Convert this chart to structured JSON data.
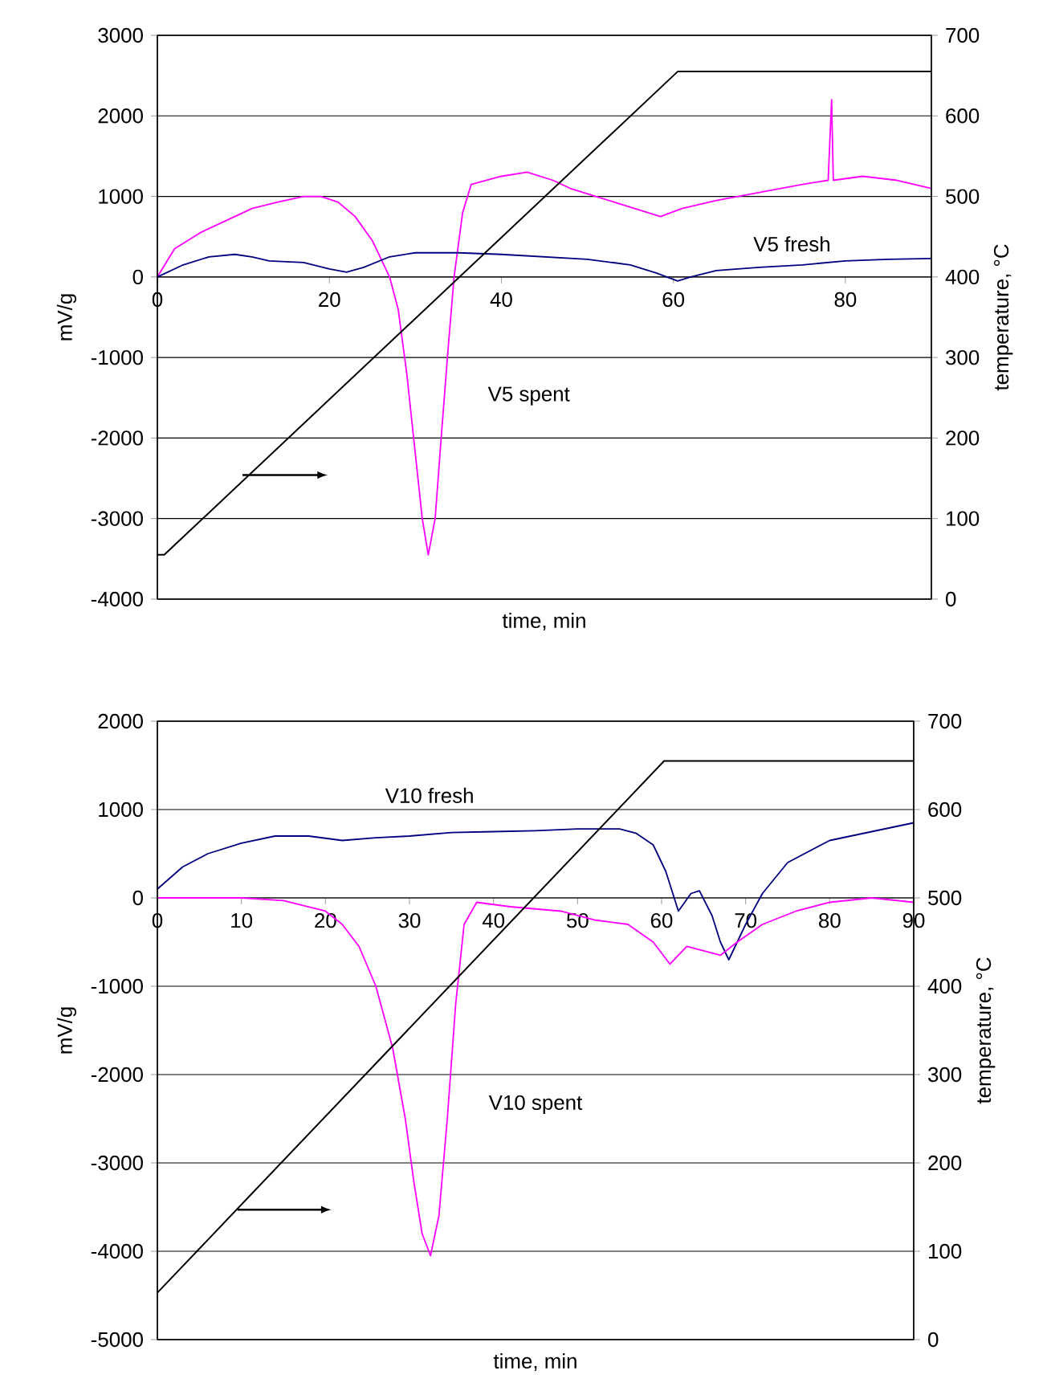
{
  "chart_data": [
    {
      "type": "line",
      "xlabel": "time, min",
      "ylabel": "mV/g",
      "y2label": "temperature, °C",
      "xlim": [
        0,
        90
      ],
      "xticks": [
        0,
        20,
        40,
        60,
        80
      ],
      "ylim": [
        -4000,
        3000
      ],
      "yticks": [
        -4000,
        -3000,
        -2000,
        -1000,
        0,
        1000,
        2000,
        3000
      ],
      "y2lim": [
        0,
        700
      ],
      "y2ticks": [
        0,
        100,
        200,
        300,
        400,
        500,
        600,
        700
      ],
      "grid": "y",
      "series": [
        {
          "name": "V5 spent",
          "color": "#ff00ff",
          "x": [
            0,
            2,
            5,
            8,
            11,
            14,
            17,
            19,
            21,
            23,
            25,
            27,
            28,
            29,
            30,
            30.8,
            31.5,
            32.3,
            33,
            33.8,
            34.5,
            35.5,
            36.5,
            40,
            43,
            46,
            48,
            51,
            54,
            57,
            58.5,
            61,
            65,
            70,
            75,
            78,
            78.4,
            78.6,
            82,
            86,
            90
          ],
          "values": [
            0,
            350,
            550,
            700,
            850,
            930,
            1000,
            1000,
            930,
            750,
            450,
            0,
            -400,
            -1200,
            -2200,
            -3000,
            -3450,
            -3000,
            -2000,
            -900,
            0,
            800,
            1150,
            1250,
            1300,
            1200,
            1100,
            1000,
            900,
            800,
            750,
            850,
            950,
            1050,
            1150,
            1200,
            2200,
            1200,
            1250,
            1200,
            1100
          ]
        },
        {
          "name": "V5 fresh",
          "color": "#000080",
          "x": [
            0,
            3,
            6,
            9,
            11,
            13,
            17,
            20,
            22,
            24,
            27,
            30,
            35,
            40,
            45,
            50,
            55,
            58,
            60.5,
            62,
            65,
            70,
            75,
            80,
            85,
            90
          ],
          "values": [
            0,
            150,
            250,
            280,
            250,
            200,
            180,
            100,
            60,
            120,
            250,
            300,
            300,
            280,
            250,
            220,
            150,
            50,
            -50,
            0,
            80,
            120,
            150,
            200,
            220,
            230
          ]
        },
        {
          "color": "#000000",
          "axis": "y2",
          "x": [
            0,
            0.8,
            60.5,
            90
          ],
          "values": [
            55,
            55,
            655,
            655
          ]
        }
      ]
    },
    {
      "type": "line",
      "xlabel": "time, min",
      "ylabel": "mV/g",
      "y2label": "temperature, °C",
      "xlim": [
        0,
        90
      ],
      "xticks": [
        0,
        10,
        20,
        30,
        40,
        50,
        60,
        70,
        80,
        90
      ],
      "ylim": [
        -5000,
        2000
      ],
      "yticks": [
        -5000,
        -4000,
        -3000,
        -2000,
        -1000,
        0,
        1000,
        2000
      ],
      "y2lim": [
        0,
        700
      ],
      "y2ticks": [
        0,
        100,
        200,
        300,
        400,
        500,
        600,
        700
      ],
      "grid": "y",
      "series": [
        {
          "name": "V10 fresh",
          "color": "#000080",
          "x": [
            0,
            3,
            6,
            10,
            14,
            18,
            22,
            26,
            30,
            35,
            40,
            45,
            50,
            55,
            57,
            59,
            60.5,
            62,
            63.5,
            64.5,
            66,
            67,
            68,
            70,
            72,
            75,
            80,
            85,
            90
          ],
          "values": [
            100,
            350,
            500,
            620,
            700,
            700,
            650,
            680,
            700,
            740,
            750,
            760,
            780,
            780,
            730,
            600,
            300,
            -150,
            50,
            80,
            -200,
            -500,
            -700,
            -300,
            50,
            400,
            650,
            750,
            850
          ]
        },
        {
          "name": "V10 spent",
          "color": "#ff00ff",
          "x": [
            0,
            10,
            15,
            20,
            22,
            24,
            26,
            28,
            29.5,
            30.5,
            31.5,
            32.5,
            33.5,
            34.5,
            35.5,
            36.5,
            38,
            42,
            48,
            52,
            56,
            59,
            61,
            63,
            65,
            67,
            69,
            72,
            76,
            80,
            85,
            90
          ],
          "values": [
            0,
            0,
            -30,
            -150,
            -300,
            -550,
            -1000,
            -1700,
            -2500,
            -3200,
            -3800,
            -4050,
            -3600,
            -2500,
            -1200,
            -300,
            -50,
            -100,
            -150,
            -250,
            -300,
            -500,
            -750,
            -550,
            -600,
            -650,
            -500,
            -300,
            -150,
            -50,
            0,
            -50
          ]
        },
        {
          "color": "#000000",
          "axis": "y2",
          "x": [
            0,
            60.3,
            90
          ],
          "values": [
            53,
            655,
            655
          ]
        }
      ]
    }
  ]
}
